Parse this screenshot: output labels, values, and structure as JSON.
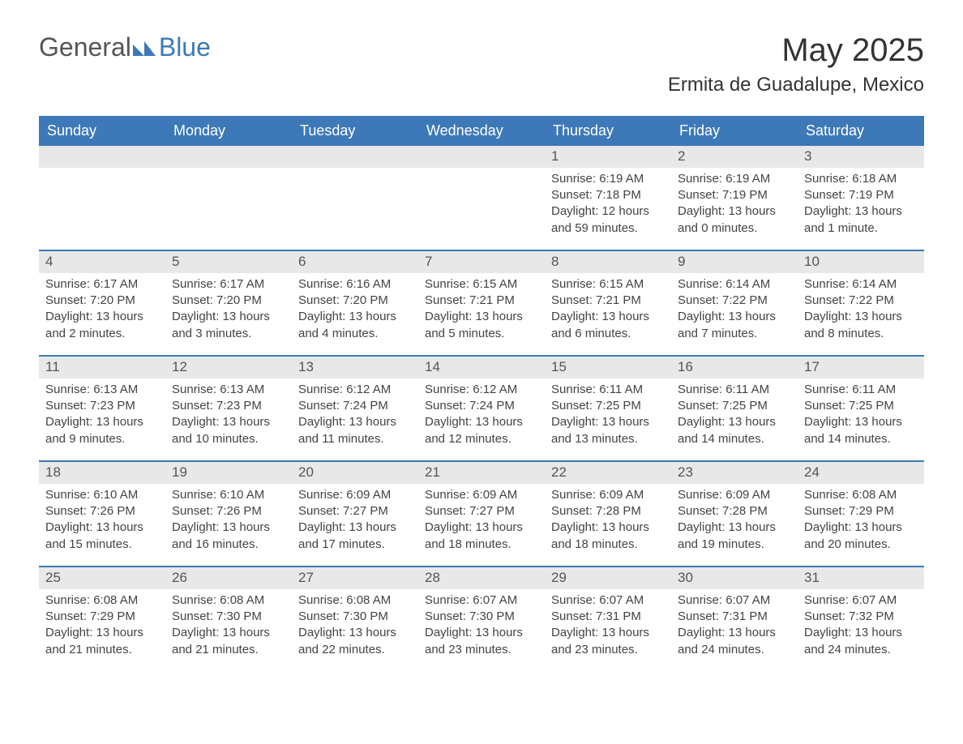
{
  "logo": {
    "text_general": "General",
    "text_blue": "Blue"
  },
  "title": "May 2025",
  "location": "Ermita de Guadalupe, Mexico",
  "colors": {
    "header_bg": "#3d79b8",
    "header_text": "#ffffff",
    "daynum_bg": "#e8e8e8",
    "week_border": "#3d79b8",
    "body_text": "#404040",
    "page_bg": "#ffffff"
  },
  "days_of_week": [
    "Sunday",
    "Monday",
    "Tuesday",
    "Wednesday",
    "Thursday",
    "Friday",
    "Saturday"
  ],
  "weeks": [
    [
      null,
      null,
      null,
      null,
      {
        "n": "1",
        "sunrise": "Sunrise: 6:19 AM",
        "sunset": "Sunset: 7:18 PM",
        "daylight1": "Daylight: 12 hours",
        "daylight2": "and 59 minutes."
      },
      {
        "n": "2",
        "sunrise": "Sunrise: 6:19 AM",
        "sunset": "Sunset: 7:19 PM",
        "daylight1": "Daylight: 13 hours",
        "daylight2": "and 0 minutes."
      },
      {
        "n": "3",
        "sunrise": "Sunrise: 6:18 AM",
        "sunset": "Sunset: 7:19 PM",
        "daylight1": "Daylight: 13 hours",
        "daylight2": "and 1 minute."
      }
    ],
    [
      {
        "n": "4",
        "sunrise": "Sunrise: 6:17 AM",
        "sunset": "Sunset: 7:20 PM",
        "daylight1": "Daylight: 13 hours",
        "daylight2": "and 2 minutes."
      },
      {
        "n": "5",
        "sunrise": "Sunrise: 6:17 AM",
        "sunset": "Sunset: 7:20 PM",
        "daylight1": "Daylight: 13 hours",
        "daylight2": "and 3 minutes."
      },
      {
        "n": "6",
        "sunrise": "Sunrise: 6:16 AM",
        "sunset": "Sunset: 7:20 PM",
        "daylight1": "Daylight: 13 hours",
        "daylight2": "and 4 minutes."
      },
      {
        "n": "7",
        "sunrise": "Sunrise: 6:15 AM",
        "sunset": "Sunset: 7:21 PM",
        "daylight1": "Daylight: 13 hours",
        "daylight2": "and 5 minutes."
      },
      {
        "n": "8",
        "sunrise": "Sunrise: 6:15 AM",
        "sunset": "Sunset: 7:21 PM",
        "daylight1": "Daylight: 13 hours",
        "daylight2": "and 6 minutes."
      },
      {
        "n": "9",
        "sunrise": "Sunrise: 6:14 AM",
        "sunset": "Sunset: 7:22 PM",
        "daylight1": "Daylight: 13 hours",
        "daylight2": "and 7 minutes."
      },
      {
        "n": "10",
        "sunrise": "Sunrise: 6:14 AM",
        "sunset": "Sunset: 7:22 PM",
        "daylight1": "Daylight: 13 hours",
        "daylight2": "and 8 minutes."
      }
    ],
    [
      {
        "n": "11",
        "sunrise": "Sunrise: 6:13 AM",
        "sunset": "Sunset: 7:23 PM",
        "daylight1": "Daylight: 13 hours",
        "daylight2": "and 9 minutes."
      },
      {
        "n": "12",
        "sunrise": "Sunrise: 6:13 AM",
        "sunset": "Sunset: 7:23 PM",
        "daylight1": "Daylight: 13 hours",
        "daylight2": "and 10 minutes."
      },
      {
        "n": "13",
        "sunrise": "Sunrise: 6:12 AM",
        "sunset": "Sunset: 7:24 PM",
        "daylight1": "Daylight: 13 hours",
        "daylight2": "and 11 minutes."
      },
      {
        "n": "14",
        "sunrise": "Sunrise: 6:12 AM",
        "sunset": "Sunset: 7:24 PM",
        "daylight1": "Daylight: 13 hours",
        "daylight2": "and 12 minutes."
      },
      {
        "n": "15",
        "sunrise": "Sunrise: 6:11 AM",
        "sunset": "Sunset: 7:25 PM",
        "daylight1": "Daylight: 13 hours",
        "daylight2": "and 13 minutes."
      },
      {
        "n": "16",
        "sunrise": "Sunrise: 6:11 AM",
        "sunset": "Sunset: 7:25 PM",
        "daylight1": "Daylight: 13 hours",
        "daylight2": "and 14 minutes."
      },
      {
        "n": "17",
        "sunrise": "Sunrise: 6:11 AM",
        "sunset": "Sunset: 7:25 PM",
        "daylight1": "Daylight: 13 hours",
        "daylight2": "and 14 minutes."
      }
    ],
    [
      {
        "n": "18",
        "sunrise": "Sunrise: 6:10 AM",
        "sunset": "Sunset: 7:26 PM",
        "daylight1": "Daylight: 13 hours",
        "daylight2": "and 15 minutes."
      },
      {
        "n": "19",
        "sunrise": "Sunrise: 6:10 AM",
        "sunset": "Sunset: 7:26 PM",
        "daylight1": "Daylight: 13 hours",
        "daylight2": "and 16 minutes."
      },
      {
        "n": "20",
        "sunrise": "Sunrise: 6:09 AM",
        "sunset": "Sunset: 7:27 PM",
        "daylight1": "Daylight: 13 hours",
        "daylight2": "and 17 minutes."
      },
      {
        "n": "21",
        "sunrise": "Sunrise: 6:09 AM",
        "sunset": "Sunset: 7:27 PM",
        "daylight1": "Daylight: 13 hours",
        "daylight2": "and 18 minutes."
      },
      {
        "n": "22",
        "sunrise": "Sunrise: 6:09 AM",
        "sunset": "Sunset: 7:28 PM",
        "daylight1": "Daylight: 13 hours",
        "daylight2": "and 18 minutes."
      },
      {
        "n": "23",
        "sunrise": "Sunrise: 6:09 AM",
        "sunset": "Sunset: 7:28 PM",
        "daylight1": "Daylight: 13 hours",
        "daylight2": "and 19 minutes."
      },
      {
        "n": "24",
        "sunrise": "Sunrise: 6:08 AM",
        "sunset": "Sunset: 7:29 PM",
        "daylight1": "Daylight: 13 hours",
        "daylight2": "and 20 minutes."
      }
    ],
    [
      {
        "n": "25",
        "sunrise": "Sunrise: 6:08 AM",
        "sunset": "Sunset: 7:29 PM",
        "daylight1": "Daylight: 13 hours",
        "daylight2": "and 21 minutes."
      },
      {
        "n": "26",
        "sunrise": "Sunrise: 6:08 AM",
        "sunset": "Sunset: 7:30 PM",
        "daylight1": "Daylight: 13 hours",
        "daylight2": "and 21 minutes."
      },
      {
        "n": "27",
        "sunrise": "Sunrise: 6:08 AM",
        "sunset": "Sunset: 7:30 PM",
        "daylight1": "Daylight: 13 hours",
        "daylight2": "and 22 minutes."
      },
      {
        "n": "28",
        "sunrise": "Sunrise: 6:07 AM",
        "sunset": "Sunset: 7:30 PM",
        "daylight1": "Daylight: 13 hours",
        "daylight2": "and 23 minutes."
      },
      {
        "n": "29",
        "sunrise": "Sunrise: 6:07 AM",
        "sunset": "Sunset: 7:31 PM",
        "daylight1": "Daylight: 13 hours",
        "daylight2": "and 23 minutes."
      },
      {
        "n": "30",
        "sunrise": "Sunrise: 6:07 AM",
        "sunset": "Sunset: 7:31 PM",
        "daylight1": "Daylight: 13 hours",
        "daylight2": "and 24 minutes."
      },
      {
        "n": "31",
        "sunrise": "Sunrise: 6:07 AM",
        "sunset": "Sunset: 7:32 PM",
        "daylight1": "Daylight: 13 hours",
        "daylight2": "and 24 minutes."
      }
    ]
  ]
}
